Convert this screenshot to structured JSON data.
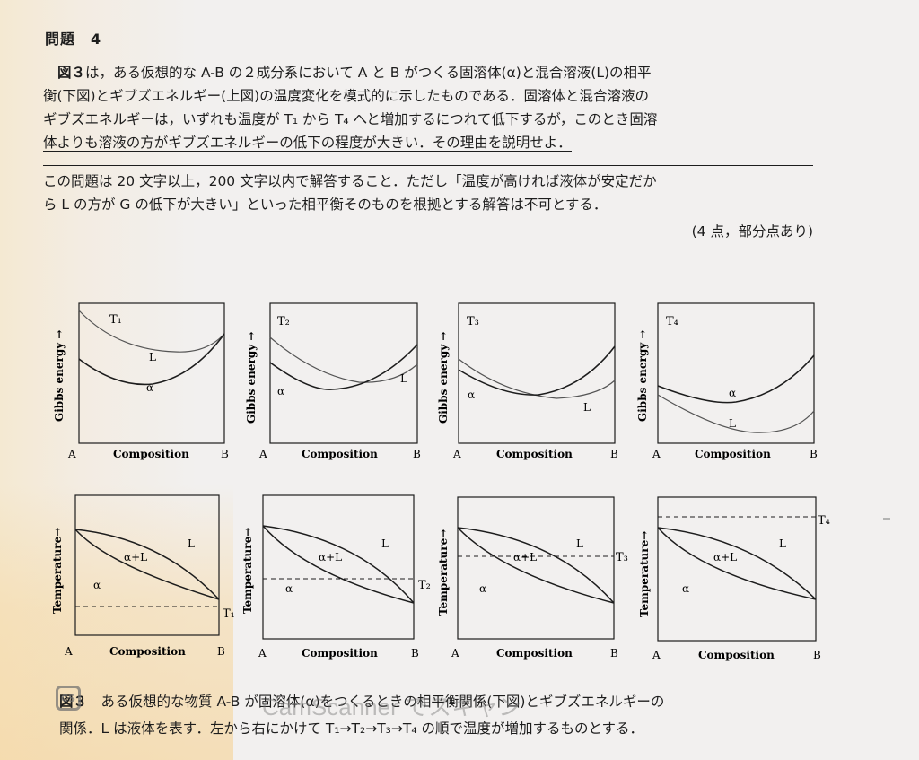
{
  "problem": {
    "title": "問題　4",
    "lines": [
      [
        "図３",
        "は，ある仮想的な A-B の２成分系において A と B がつくる固溶体(α)と混合溶液(L)の相平"
      ],
      [
        "",
        "衡(下図)とギブズエネルギー(上図)の温度変化を模式的に示したものである．固溶体と混合溶液の"
      ],
      [
        "",
        "ギブズエネルギーは，いずれも温度が T₁ から T₄ へと増加するにつれて低下するが，このとき固溶"
      ],
      [
        "",
        "体よりも溶液の方がギブズエネルギーの低下の程度が大きい．その理由を説明せよ．"
      ],
      [
        "",
        "この問題は 20 文字以上，200 文字以内で解答すること．ただし「温度が高ければ液体が安定だか"
      ],
      [
        "",
        "ら L の方が G の低下が大きい」といった相平衡そのものを根拠とする解答は不可とする．"
      ]
    ],
    "points": "(4 点，部分点あり)"
  },
  "figure": {
    "gibbs_ylabel": "Gibbs energy →",
    "temp_ylabel": "Temperature→",
    "xlabel": "Composition",
    "left_end": "A",
    "right_end": "B",
    "phase_alpha": "α",
    "phase_liquid": "L",
    "phase_two": "α+L",
    "temps": [
      "T₁",
      "T₂",
      "T₃",
      "T₄"
    ]
  },
  "caption": {
    "line1_label": "図３",
    "line1": "ある仮想的な物質 A-B が固溶体(α)をつくるときの相平衡関係(下図)とギブズエネルギーの",
    "line2": "関係．L は液体を表す．左から右にかけて T₁→T₂→T₃→T₄ の順で温度が増加するものとする．"
  },
  "watermark": "CamScanner でスキャン"
}
